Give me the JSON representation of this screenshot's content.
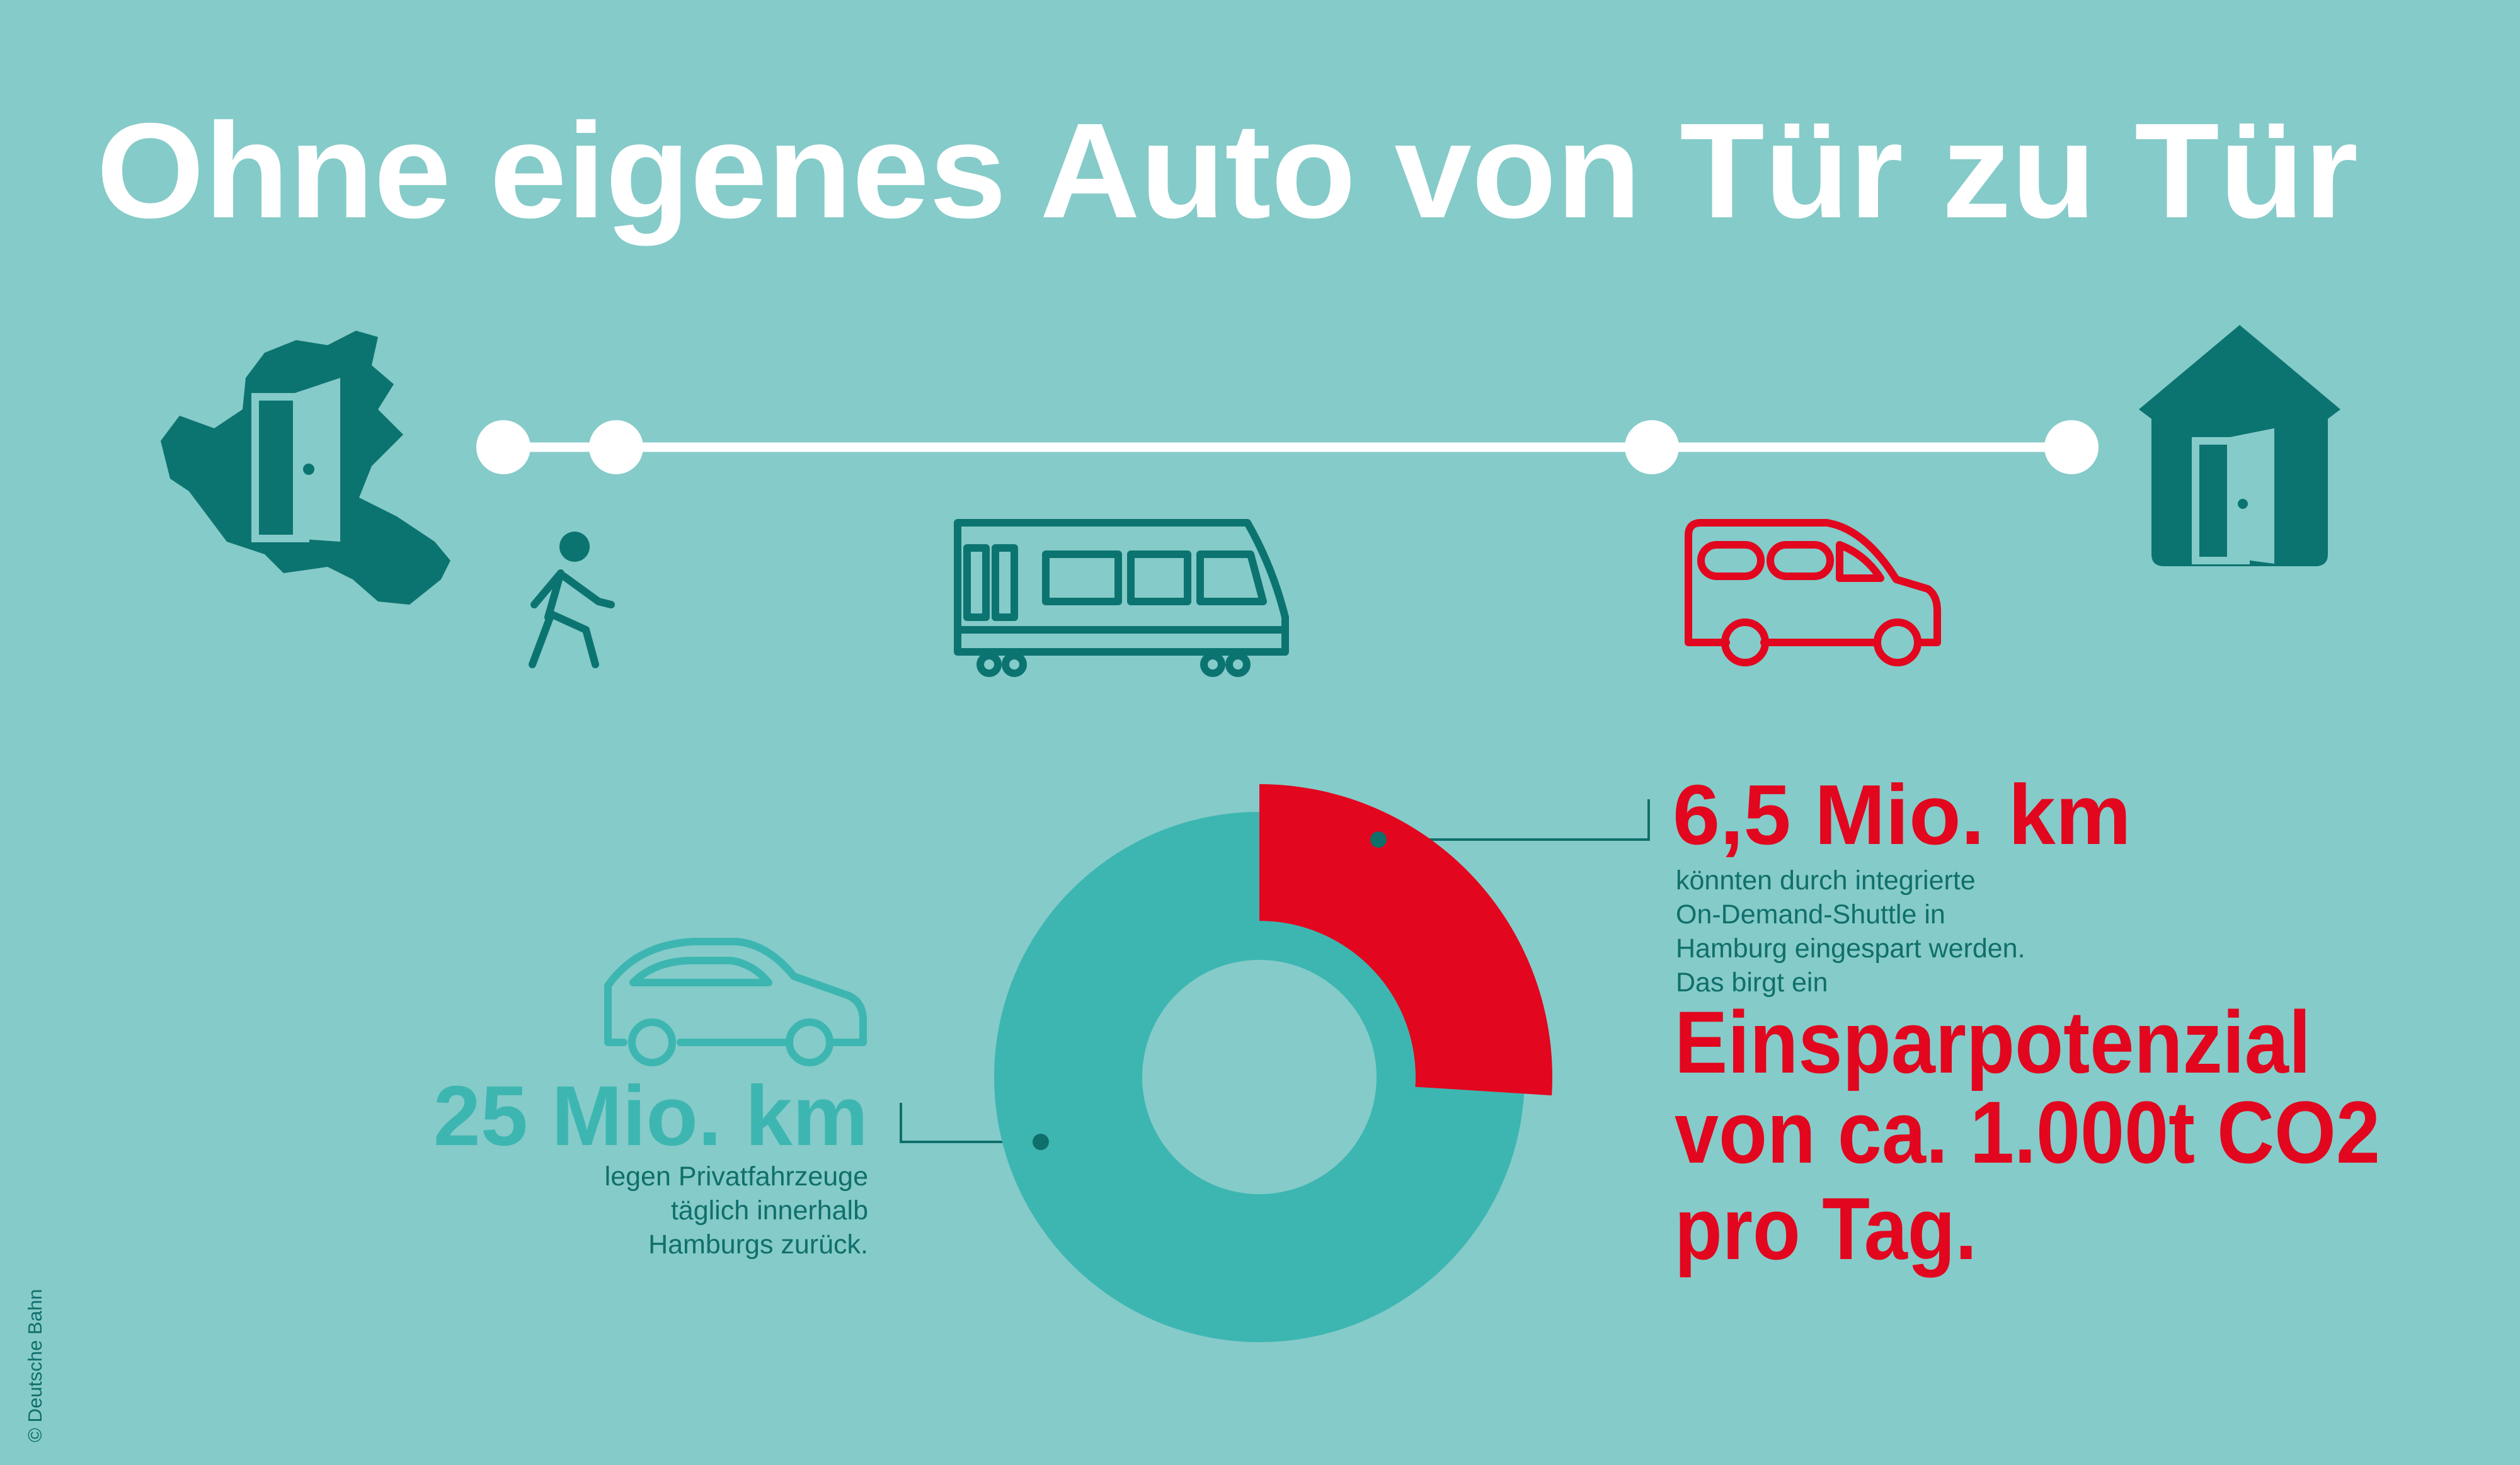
{
  "title": "Ohne eigenes Auto von Tür zu Tür",
  "chart_data": {
    "type": "donut",
    "values": [
      25,
      6.5
    ],
    "value_labels": [
      "25 Mio. km",
      "6,5 Mio. km"
    ],
    "colors": [
      "#3db6b1",
      "#e2061e"
    ],
    "descriptions": [
      [
        "legen Privatfahrzeuge",
        "täglich innerhalb",
        "Hamburgs zurück."
      ],
      [
        "könnten durch integrierte",
        "On-Demand-Shuttle in",
        "Hamburg eingespart werden.",
        "Das birgt ein"
      ]
    ]
  },
  "highlight": [
    "Einsparpotenzial",
    "von ca. 1.000t CO2",
    "pro Tag."
  ],
  "credit": "© Deutsche Bahn"
}
